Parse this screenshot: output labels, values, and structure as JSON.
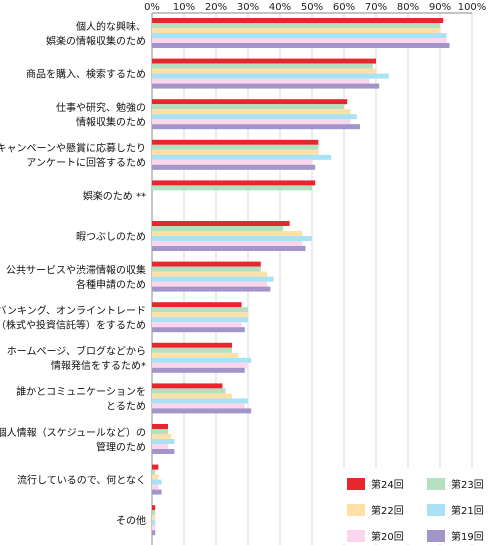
{
  "chart_data": {
    "type": "bar",
    "orientation": "horizontal",
    "xlim": [
      0,
      100
    ],
    "x_ticks": [
      "0%",
      "10%",
      "20%",
      "30%",
      "40%",
      "50%",
      "60%",
      "70%",
      "80%",
      "90%",
      "100%"
    ],
    "grid": true,
    "legend_position": "bottom-right",
    "categories": [
      [
        "個人的な興味、",
        "娯楽の情報収集のため"
      ],
      [
        "商品を購入、検索するため"
      ],
      [
        "仕事や研究、勉強の",
        "情報収集のため"
      ],
      [
        "キャンペーンや懸賞に応募したり",
        "アンケートに回答するため"
      ],
      [
        "娯楽のため **"
      ],
      [
        "暇つぶしのため"
      ],
      [
        "公共サービスや渋滞情報の収集",
        "各種申請のため"
      ],
      [
        "ネットバンキング、オンライントレード",
        "（株式や投資信託等）をするため"
      ],
      [
        "ホームページ、ブログなどから",
        "情報発信をするため*"
      ],
      [
        "誰かとコミュニケーションを",
        "とるため"
      ],
      [
        "個人情報（スケジュールなど）の",
        "管理のため"
      ],
      [
        "流行しているので、何となく"
      ],
      [
        "その他"
      ]
    ],
    "series": [
      {
        "name": "第24回",
        "color": "#e8262e",
        "values": [
          91,
          70,
          61,
          52,
          51,
          43,
          34,
          28,
          25,
          22,
          5,
          2,
          1
        ]
      },
      {
        "name": "第23回",
        "color": "#b4e0c0",
        "values": [
          90,
          69,
          60,
          52,
          50,
          41,
          34,
          30,
          25,
          23,
          5,
          1,
          1
        ]
      },
      {
        "name": "第22回",
        "color": "#ffe0a6",
        "values": [
          90,
          70,
          62,
          52,
          null,
          47,
          36,
          30,
          27,
          25,
          6,
          2,
          1
        ]
      },
      {
        "name": "第21回",
        "color": "#a8e2f4",
        "values": [
          92,
          74,
          64,
          56,
          null,
          50,
          38,
          30,
          31,
          30,
          7,
          3,
          1
        ]
      },
      {
        "name": "第20回",
        "color": "#fbd6ec",
        "values": [
          92,
          68,
          62,
          50,
          null,
          47,
          36,
          28,
          30,
          29,
          5,
          2,
          1
        ]
      },
      {
        "name": "第19回",
        "color": "#a395c9",
        "values": [
          93,
          71,
          65,
          51,
          null,
          48,
          37,
          29,
          29,
          31,
          7,
          3,
          1
        ]
      }
    ]
  }
}
